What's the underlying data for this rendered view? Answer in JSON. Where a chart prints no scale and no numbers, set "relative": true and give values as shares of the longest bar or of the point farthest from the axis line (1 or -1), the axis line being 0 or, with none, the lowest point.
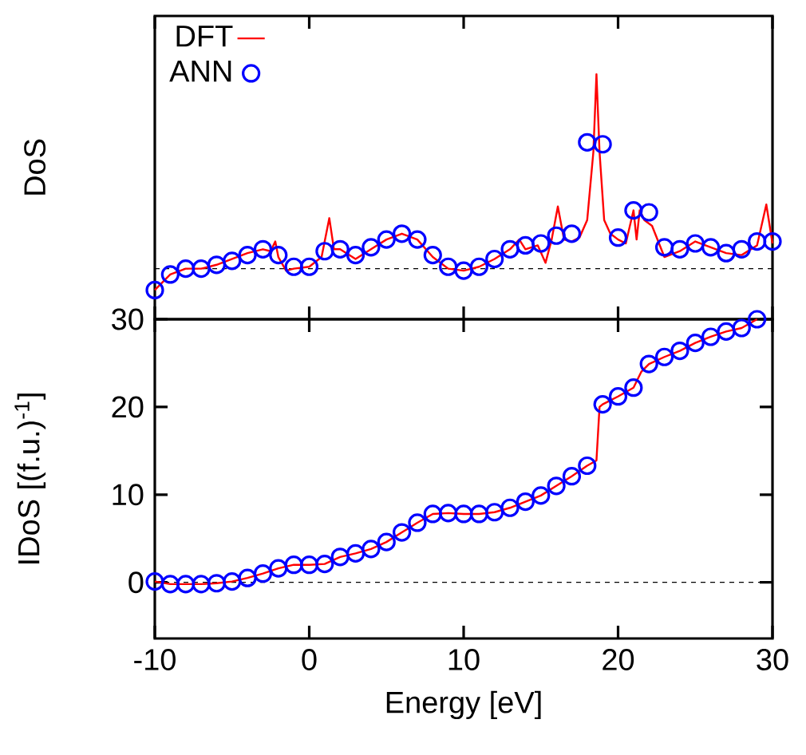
{
  "chart_data": [
    {
      "type": "line",
      "ylabel": "DoS",
      "relative": true,
      "xlim": [
        -10,
        30
      ],
      "xticks": [
        -10,
        0,
        10,
        20,
        30
      ],
      "tick_labels": false,
      "legend": "top left",
      "grid": false,
      "ref_lines": [
        {
          "axis": "y",
          "value": 0,
          "color": "#000000",
          "line_style": "dashed"
        }
      ],
      "series": [
        {
          "name": "DFT",
          "color": "#ff0000",
          "marker": "none",
          "line_style": "solid",
          "x": [
            -10,
            -9,
            -8,
            -7,
            -6,
            -5,
            -4,
            -3,
            -2.5,
            -2.2,
            -2,
            -1.5,
            -1,
            0,
            0.8,
            1.3,
            1.6,
            2,
            3,
            4,
            5,
            6,
            7,
            8,
            9,
            10,
            11,
            12,
            13,
            13.6,
            14,
            14.8,
            15.3,
            15.7,
            16.1,
            16.5,
            17,
            17.5,
            18,
            18.4,
            18.6,
            18.8,
            19.1,
            19.5,
            20,
            20.5,
            21,
            21.2,
            21.4,
            21.7,
            22.2,
            23,
            24,
            25,
            26,
            27,
            28,
            29,
            29.6,
            30
          ],
          "values": [
            -0.11,
            -0.03,
            0.0,
            0.0,
            0.02,
            0.05,
            0.08,
            0.1,
            0.09,
            0.14,
            0.06,
            -0.01,
            0.0,
            0.01,
            0.06,
            0.26,
            0.1,
            0.1,
            0.05,
            0.1,
            0.15,
            0.18,
            0.15,
            0.06,
            0.0,
            -0.01,
            0.01,
            0.05,
            0.1,
            0.15,
            0.1,
            0.12,
            0.03,
            0.15,
            0.32,
            0.15,
            0.14,
            0.16,
            0.25,
            0.6,
            1.0,
            0.6,
            0.25,
            0.18,
            0.15,
            0.13,
            0.3,
            0.15,
            0.3,
            0.25,
            0.22,
            0.06,
            0.09,
            0.14,
            0.11,
            0.08,
            0.07,
            0.12,
            0.33,
            0.13
          ]
        },
        {
          "name": "ANN",
          "type": "scatter",
          "color": "#0000ff",
          "marker": "circle",
          "x": [
            -10,
            -9,
            -8,
            -7,
            -6,
            -5,
            -4,
            -3,
            -2,
            -1,
            0,
            1,
            2,
            3,
            4,
            5,
            6,
            7,
            8,
            9,
            10,
            11,
            12,
            13,
            14,
            15,
            16,
            17,
            18,
            19,
            20,
            21,
            22,
            23,
            24,
            25,
            26,
            27,
            28,
            29,
            30
          ],
          "values": [
            -0.11,
            -0.03,
            0.0,
            0.0,
            0.02,
            0.04,
            0.07,
            0.1,
            0.07,
            0.01,
            0.01,
            0.09,
            0.1,
            0.07,
            0.11,
            0.15,
            0.18,
            0.15,
            0.07,
            0.01,
            -0.01,
            0.01,
            0.05,
            0.1,
            0.12,
            0.13,
            0.17,
            0.18,
            0.65,
            0.64,
            0.16,
            0.3,
            0.29,
            0.11,
            0.1,
            0.13,
            0.11,
            0.08,
            0.1,
            0.14,
            0.14
          ]
        }
      ]
    },
    {
      "type": "line",
      "xlabel": "Energy [eV]",
      "ylabel": "IDoS [(f.u.)$^{-1}$]",
      "xlim": [
        -10,
        30
      ],
      "ylim": [
        -6.4,
        30
      ],
      "xticks": [
        -10,
        0,
        10,
        20,
        30
      ],
      "yticks": [
        0,
        10,
        20,
        30
      ],
      "grid": false,
      "ref_lines": [
        {
          "axis": "y",
          "value": 0,
          "color": "#000000",
          "line_style": "dashed"
        }
      ],
      "series": [
        {
          "color": "#ff0000",
          "marker": "none",
          "line_style": "solid",
          "x": [
            -10,
            -9,
            -8,
            -7,
            -6,
            -5,
            -4,
            -3,
            -2,
            -1,
            0,
            1,
            2,
            3,
            4,
            5,
            6,
            7,
            8,
            9,
            10,
            11,
            12,
            13,
            14,
            15,
            16,
            17,
            18,
            18.6,
            18.8,
            19,
            20,
            21,
            21.5,
            22,
            23,
            24,
            25,
            26,
            27,
            28,
            29
          ],
          "values": [
            0.1,
            -0.2,
            -0.2,
            -0.2,
            -0.1,
            0.1,
            0.5,
            1.0,
            1.6,
            2.0,
            2.0,
            2.1,
            2.9,
            3.3,
            3.8,
            4.6,
            5.7,
            6.8,
            7.8,
            7.9,
            7.8,
            7.8,
            8.0,
            8.5,
            9.2,
            9.9,
            11.0,
            12.1,
            13.3,
            13.9,
            20.0,
            20.3,
            21.2,
            22.2,
            24.0,
            24.9,
            25.7,
            26.4,
            27.3,
            28.0,
            28.6,
            29.0,
            30.0
          ]
        },
        {
          "type": "scatter",
          "color": "#0000ff",
          "marker": "circle",
          "x": [
            -10,
            -9,
            -8,
            -7,
            -6,
            -5,
            -4,
            -3,
            -2,
            -1,
            0,
            1,
            2,
            3,
            4,
            5,
            6,
            7,
            8,
            9,
            10,
            11,
            12,
            13,
            14,
            15,
            16,
            17,
            18,
            19,
            20,
            21,
            22,
            23,
            24,
            25,
            26,
            27,
            28,
            29
          ],
          "values": [
            0.1,
            -0.2,
            -0.2,
            -0.2,
            -0.1,
            0.1,
            0.5,
            1.0,
            1.6,
            2.0,
            2.0,
            2.1,
            2.9,
            3.3,
            3.8,
            4.6,
            5.7,
            6.8,
            7.8,
            7.9,
            7.8,
            7.8,
            8.0,
            8.5,
            9.2,
            9.9,
            11.0,
            12.1,
            13.3,
            20.3,
            21.2,
            22.2,
            24.9,
            25.7,
            26.4,
            27.3,
            28.0,
            28.6,
            29.0,
            30.0
          ]
        }
      ]
    }
  ]
}
